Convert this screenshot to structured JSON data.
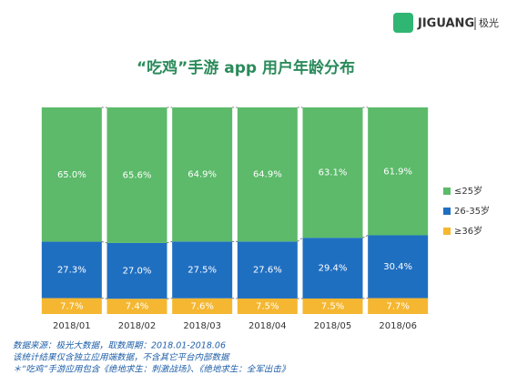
{
  "chart_data": {
    "type": "stacked_bar",
    "brand": "JIGUANG",
    "brand_cn": "极光",
    "title": "“吃鸡”手游 app 用户年龄分布",
    "categories": [
      "2018/01",
      "2018/02",
      "2018/03",
      "2018/04",
      "2018/05",
      "2018/06"
    ],
    "ylim": [
      0,
      100
    ],
    "series": [
      {
        "name": "≥36岁",
        "color": "#f5b731",
        "values": [
          7.7,
          7.4,
          7.6,
          7.5,
          7.5,
          7.7
        ],
        "value_labels": [
          "7.7%",
          "7.4%",
          "7.6%",
          "7.5%",
          "7.5%",
          "7.7%"
        ]
      },
      {
        "name": "26-35岁",
        "color": "#1f6fc1",
        "values": [
          27.3,
          27.0,
          27.5,
          27.6,
          29.4,
          30.4
        ],
        "value_labels": [
          "27.3%",
          "27.0%",
          "27.5%",
          "27.6%",
          "29.4%",
          "30.4%"
        ]
      },
      {
        "name": "≤25岁",
        "color": "#5cba6a",
        "values": [
          65.0,
          65.6,
          64.9,
          64.9,
          63.1,
          61.9
        ],
        "value_labels": [
          "65.0%",
          "65.6%",
          "64.9%",
          "64.9%",
          "63.1%",
          "61.9%"
        ]
      }
    ],
    "notes": [
      "数据来源：极光大数据，取数周期：2018.01-2018.06",
      "该统计结果仅含独立应用端数据，不含其它平台内部数据",
      "＊“吃鸡”手游应用包含《绝地求生：刺激战场》、《绝地求生：全军出击》"
    ]
  }
}
